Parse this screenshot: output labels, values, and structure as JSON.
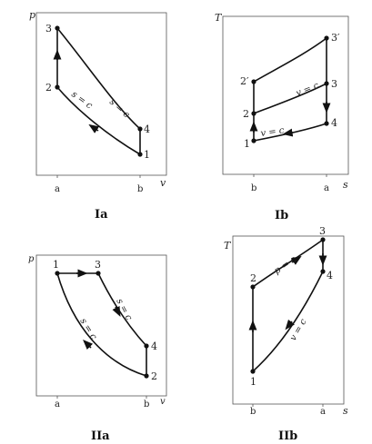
{
  "panels": {
    "Ia": {
      "caption": "Ia",
      "y_axis": "p",
      "x_axis": "v",
      "ticks": [
        "a",
        "b"
      ],
      "points": [
        "1",
        "2",
        "3",
        "4"
      ],
      "curve_labels": [
        "s = c",
        "s = c"
      ]
    },
    "Ib": {
      "caption": "Ib",
      "y_axis": "T",
      "x_axis": "s",
      "ticks": [
        "b",
        "a"
      ],
      "points": [
        "1",
        "2",
        "2′",
        "3",
        "3′",
        "4"
      ],
      "curve_labels": [
        "v = c",
        "v = c"
      ]
    },
    "IIa": {
      "caption": "IIa",
      "y_axis": "p",
      "x_axis": "v",
      "ticks": [
        "a",
        "b"
      ],
      "points": [
        "1",
        "2",
        "3",
        "4"
      ],
      "curve_labels": [
        "s = c",
        "s = c"
      ]
    },
    "IIb": {
      "caption": "IIb",
      "y_axis": "T",
      "x_axis": "s",
      "ticks": [
        "b",
        "a"
      ],
      "points": [
        "1",
        "2",
        "3",
        "4"
      ],
      "curve_labels": [
        "p = c",
        "v = c"
      ]
    }
  }
}
